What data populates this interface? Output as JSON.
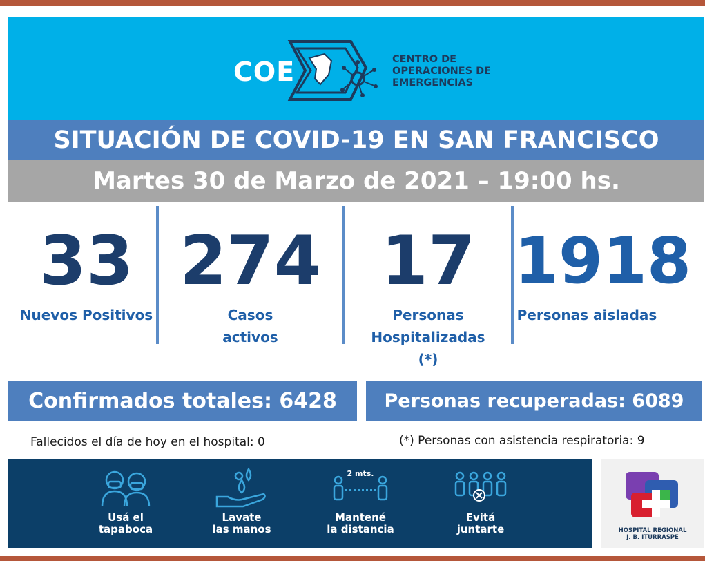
{
  "colors": {
    "frame": "#b5573a",
    "banner": "#00b0e8",
    "title_band": "#4e7fbe",
    "date_band": "#a6a6a6",
    "stat_dark": "#1c3d6b",
    "stat_blue": "#1f5fa8",
    "tips_band": "#0c3f68"
  },
  "logo": {
    "acronym": "COE",
    "lines": [
      "CENTRO DE",
      "OPERACIONES DE",
      "EMERGENCIAS"
    ]
  },
  "title": "SITUACIÓN DE COVID-19 EN SAN FRANCISCO",
  "date": "Martes 30 de Marzo de 2021 – 19:00 hs.",
  "stats": [
    {
      "value": "33",
      "label_lines": [
        "Nuevos Positivos"
      ]
    },
    {
      "value": "274",
      "label_lines": [
        "Casos",
        "activos"
      ]
    },
    {
      "value": "17",
      "label_lines": [
        "Personas",
        "Hospitalizadas",
        "(*)"
      ]
    },
    {
      "value": "1918",
      "label_lines": [
        "Personas aisladas"
      ]
    }
  ],
  "totals": {
    "confirmed": "Confirmados totales: 6428",
    "recovered": "Personas recuperadas: 6089"
  },
  "notes": {
    "deaths": "Fallecidos el día de hoy en el hospital:  0",
    "respiratory": "(*) Personas con asistencia respiratoria: 9"
  },
  "tips": [
    {
      "icon": "mask-icon",
      "lines": [
        "Usá el",
        "tapaboca"
      ]
    },
    {
      "icon": "handwash-icon",
      "lines": [
        "Lavate",
        "las manos"
      ]
    },
    {
      "icon": "distance-icon",
      "lines": [
        "Mantené",
        "la distancia"
      ],
      "distance_text": "2 mts."
    },
    {
      "icon": "no-gathering-icon",
      "lines": [
        "Evitá",
        "juntarte"
      ]
    }
  ],
  "hospital": {
    "lines": [
      "HOSPITAL REGIONAL",
      "J. B. ITURRASPE"
    ]
  }
}
